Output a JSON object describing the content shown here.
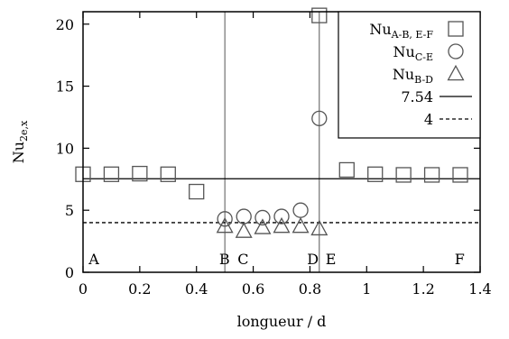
{
  "chart_data": {
    "type": "scatter",
    "xlabel": "longueur / d",
    "ylabel": {
      "main": "Nu",
      "sub": "2e,x"
    },
    "xlim": [
      0,
      1.4
    ],
    "ylim": [
      0,
      21
    ],
    "xticks": [
      0,
      0.2,
      0.4,
      0.6,
      0.8,
      1.0,
      1.2,
      1.4
    ],
    "xtick_labels": [
      "0",
      "0.2",
      "0.4",
      "0.6",
      "0.8",
      "1",
      "1.2",
      "1.4"
    ],
    "yticks": [
      0,
      5,
      10,
      15,
      20
    ],
    "ytick_labels": [
      "0",
      "5",
      "10",
      "15",
      "20"
    ],
    "legend_position": "top-right",
    "vertical_lines": [
      0.5,
      0.833
    ],
    "section_labels": [
      {
        "text": "A",
        "x": 0.02
      },
      {
        "text": "B",
        "x": 0.48
      },
      {
        "text": "C",
        "x": 0.545
      },
      {
        "text": "D",
        "x": 0.79
      },
      {
        "text": "E",
        "x": 0.855
      },
      {
        "text": "F",
        "x": 1.31
      }
    ],
    "series": [
      {
        "name": "Nu",
        "name_sub": "A-B, E-F",
        "marker": "square",
        "points": [
          [
            0.0,
            7.9
          ],
          [
            0.1,
            7.9
          ],
          [
            0.2,
            7.95
          ],
          [
            0.3,
            7.9
          ],
          [
            0.4,
            6.5
          ],
          [
            0.833,
            20.7
          ],
          [
            0.93,
            8.25
          ],
          [
            1.03,
            7.9
          ],
          [
            1.13,
            7.85
          ],
          [
            1.23,
            7.85
          ],
          [
            1.33,
            7.85
          ]
        ]
      },
      {
        "name": "Nu",
        "name_sub": "C-E",
        "marker": "circle",
        "points": [
          [
            0.5,
            4.3
          ],
          [
            0.567,
            4.5
          ],
          [
            0.633,
            4.4
          ],
          [
            0.7,
            4.5
          ],
          [
            0.767,
            5.0
          ],
          [
            0.833,
            12.4
          ]
        ]
      },
      {
        "name": "Nu",
        "name_sub": "B-D",
        "marker": "triangle",
        "points": [
          [
            0.5,
            3.7
          ],
          [
            0.567,
            3.3
          ],
          [
            0.633,
            3.6
          ],
          [
            0.7,
            3.7
          ],
          [
            0.767,
            3.7
          ],
          [
            0.833,
            3.5
          ]
        ]
      },
      {
        "name": "7.54",
        "type": "hline",
        "value": 7.54,
        "style": "solid"
      },
      {
        "name": "4",
        "type": "hline",
        "value": 4,
        "style": "dashed"
      }
    ]
  }
}
